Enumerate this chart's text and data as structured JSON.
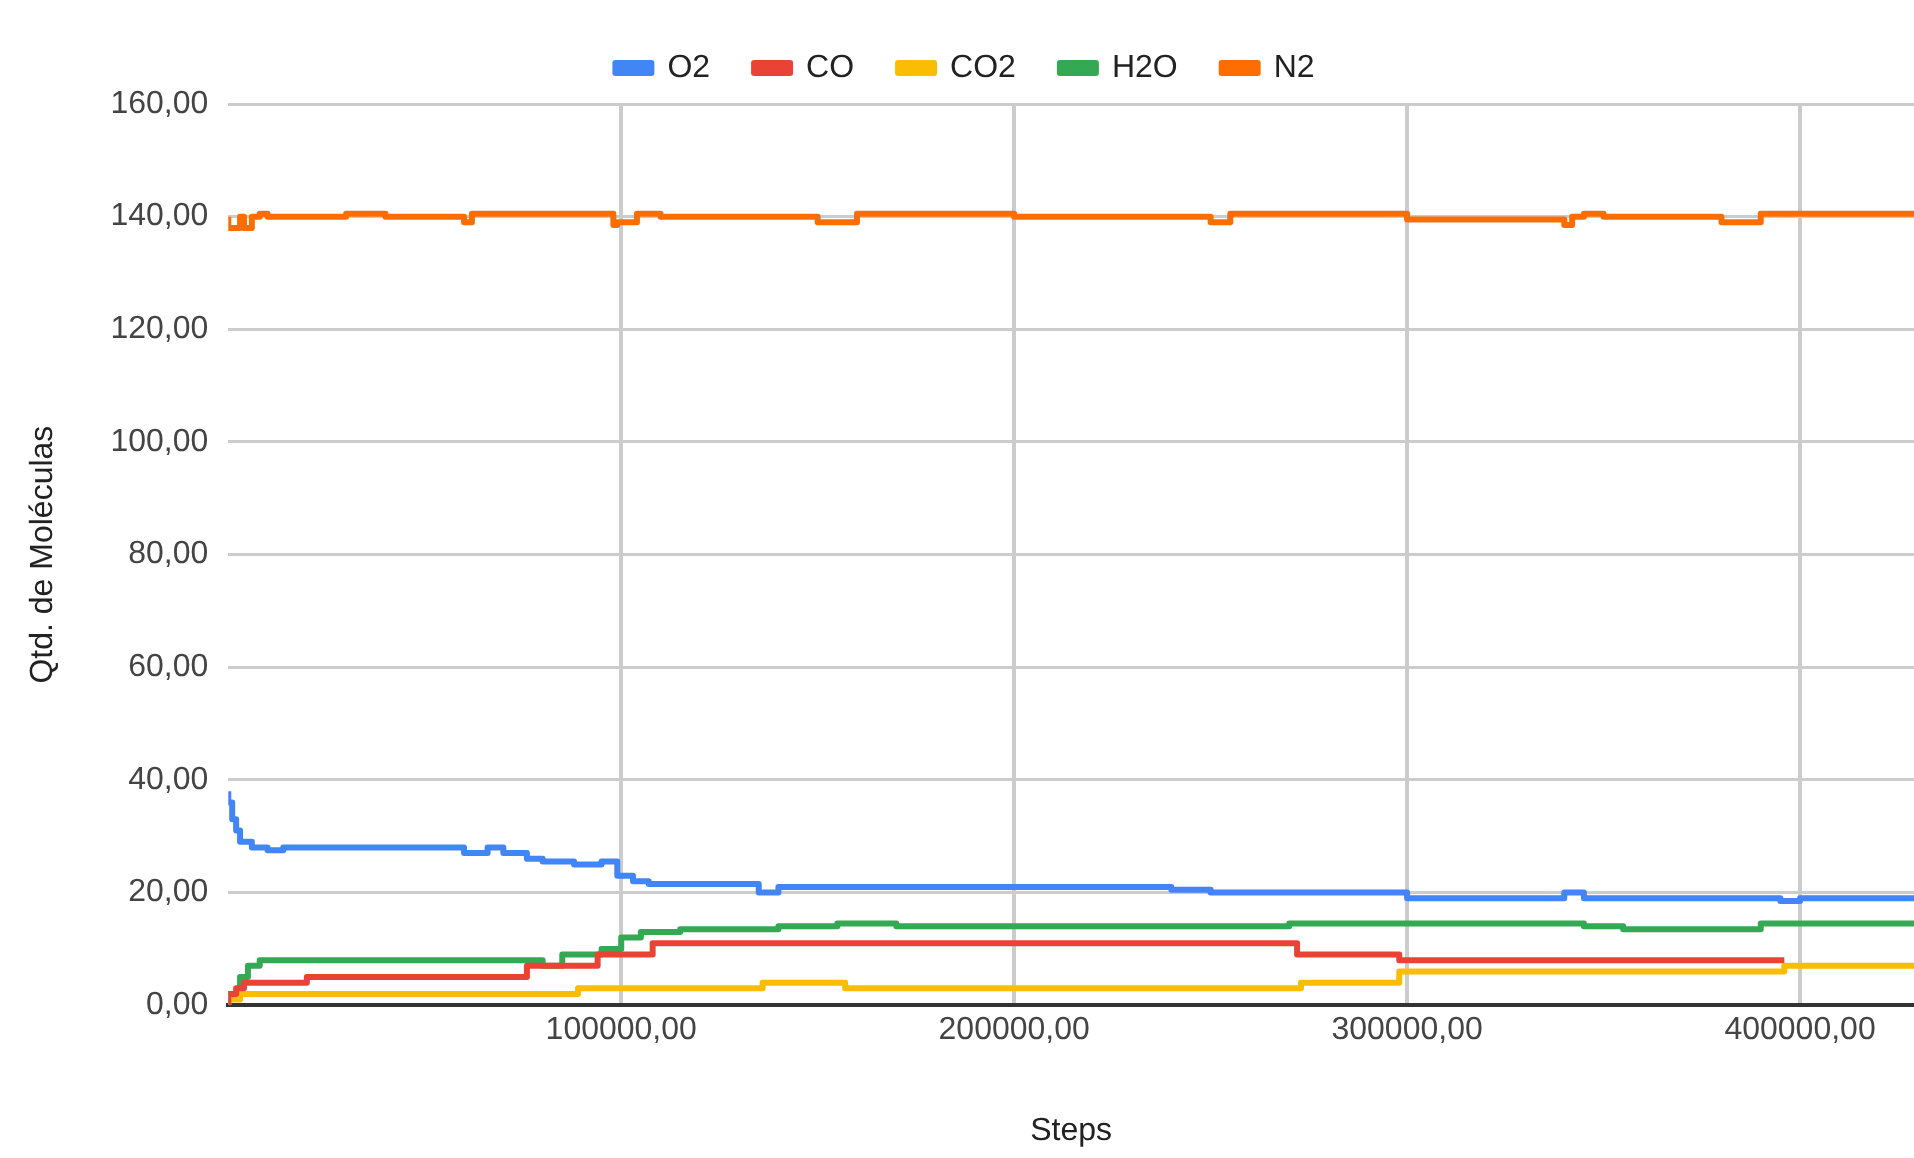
{
  "chart_data": {
    "type": "step",
    "xlabel": "Steps",
    "ylabel": "Qtd. de Moléculas",
    "legend": "top",
    "grid": true,
    "marker": "none",
    "line_style": "solid",
    "xlim": [
      0,
      429000
    ],
    "xticks": [
      {
        "value": 100000,
        "label": "100000,00"
      },
      {
        "value": 200000,
        "label": "200000,00"
      },
      {
        "value": 300000,
        "label": "300000,00"
      },
      {
        "value": 400000,
        "label": "400000,00"
      }
    ],
    "ylim": [
      0,
      160
    ],
    "yticks": [
      {
        "value": 0,
        "label": "0,00"
      },
      {
        "value": 20,
        "label": "20,00"
      },
      {
        "value": 40,
        "label": "40,00"
      },
      {
        "value": 60,
        "label": "60,00"
      },
      {
        "value": 80,
        "label": "80,00"
      },
      {
        "value": 100,
        "label": "100,00"
      },
      {
        "value": 120,
        "label": "120,00"
      },
      {
        "value": 140,
        "label": "140,00"
      },
      {
        "value": 160,
        "label": "160,00"
      }
    ],
    "series": [
      {
        "name": "O2",
        "color": "#4285f4",
        "x": [
          0,
          1000,
          2000,
          3000,
          4000,
          6000,
          10000,
          14000,
          20000,
          60000,
          66000,
          70000,
          76000,
          80000,
          88000,
          95000,
          99000,
          103000,
          107000,
          135000,
          140000,
          148000,
          240000,
          250000,
          275000,
          300000,
          305000,
          340000,
          345000,
          350000,
          395000,
          400000,
          429000
        ],
        "values": [
          38,
          36,
          33,
          31,
          29,
          29,
          28,
          27.5,
          28,
          28,
          27,
          28,
          27,
          26,
          25.5,
          25,
          25.5,
          23,
          22,
          21.5,
          20,
          21,
          21,
          20.5,
          20,
          20,
          19,
          19,
          20,
          19,
          19,
          18.5,
          19
        ]
      },
      {
        "name": "CO",
        "color": "#ea4335",
        "x": [
          0,
          2000,
          4000,
          20000,
          76000,
          94000,
          108000,
          157000,
          272000,
          298000,
          396000
        ],
        "values": [
          0,
          2,
          3,
          4,
          5,
          7,
          9,
          11,
          11,
          9,
          8
        ]
      },
      {
        "name": "CO2",
        "color": "#fbbc04",
        "x": [
          0,
          3000,
          17000,
          89000,
          92000,
          136000,
          157000,
          273000,
          298000,
          396000,
          429000
        ],
        "values": [
          0,
          1,
          2,
          2,
          3,
          3,
          4,
          3,
          4,
          6,
          7
        ]
      },
      {
        "name": "H2O",
        "color": "#34a853",
        "x": [
          0,
          3000,
          5000,
          8000,
          15000,
          40000,
          80000,
          85000,
          95000,
          100000,
          105000,
          115000,
          140000,
          155000,
          170000,
          270000,
          300000,
          345000,
          355000,
          390000,
          400000,
          429000
        ],
        "values": [
          0,
          2,
          5,
          7,
          8,
          8,
          8,
          7,
          9,
          10,
          12,
          13,
          13.5,
          14,
          14.5,
          14,
          14.5,
          14.5,
          14,
          13.5,
          14.5,
          14.5
        ]
      },
      {
        "name": "N2",
        "color": "#ff6d01",
        "x": [
          0,
          3000,
          4000,
          6000,
          8000,
          10000,
          30000,
          40000,
          60000,
          62000,
          98000,
          99000,
          104000,
          110000,
          150000,
          160000,
          165000,
          200000,
          250000,
          255000,
          260000,
          300000,
          340000,
          342000,
          345000,
          350000,
          380000,
          390000,
          392000,
          429000
        ],
        "values": [
          140,
          138,
          140,
          138,
          140,
          140.5,
          140,
          140.5,
          140,
          139,
          140.5,
          138.5,
          139,
          140.5,
          140,
          139,
          140.5,
          140.5,
          140,
          139,
          140.5,
          140.5,
          139.5,
          138.5,
          140,
          140.5,
          140,
          139,
          140.5,
          140.5
        ]
      }
    ]
  }
}
